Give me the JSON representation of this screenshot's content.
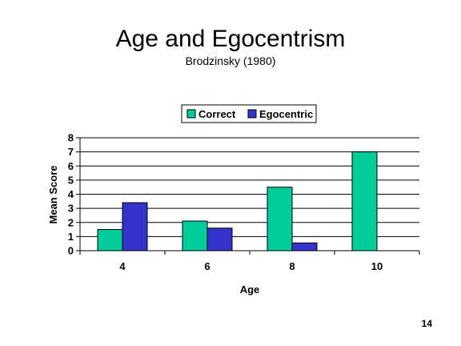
{
  "slide": {
    "title": "Age and Egocentrism",
    "subtitle": "Brodzinsky (1980)",
    "page_number": "14"
  },
  "chart_data": {
    "type": "bar",
    "categories": [
      "4",
      "6",
      "8",
      "10"
    ],
    "series": [
      {
        "name": "Correct",
        "values": [
          1.5,
          2.1,
          4.5,
          7.0
        ],
        "color": "#00CC99"
      },
      {
        "name": "Egocentric",
        "values": [
          3.4,
          1.6,
          0.55,
          0
        ],
        "color": "#3333CC"
      }
    ],
    "xlabel": "Age",
    "ylabel": "Mean Score",
    "ylim": [
      0,
      8
    ],
    "yticks": [
      0,
      1,
      2,
      3,
      4,
      5,
      6,
      7,
      8
    ],
    "grid": true,
    "legend_position": "top"
  }
}
